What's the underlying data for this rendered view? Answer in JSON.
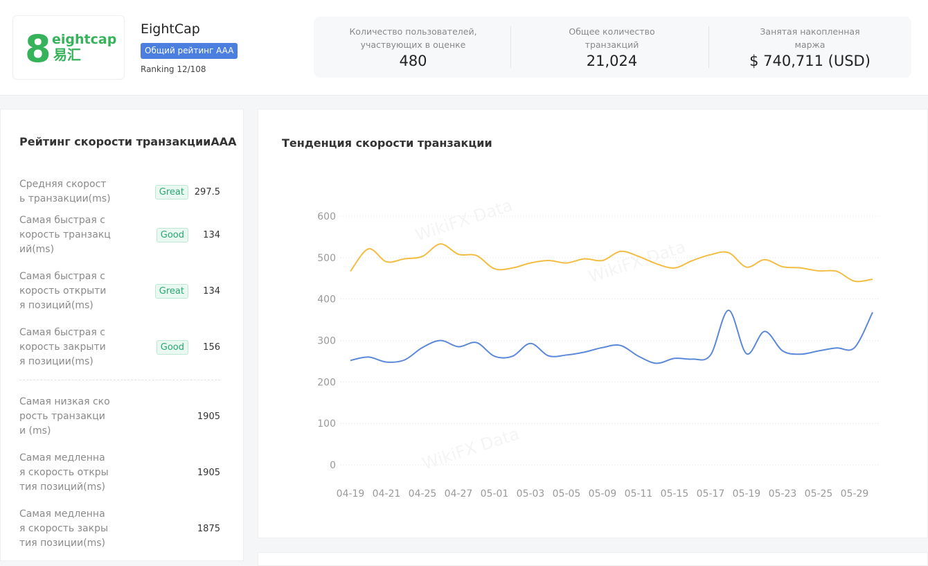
{
  "header": {
    "logo": {
      "mark": "8",
      "name": "eightcap",
      "cn": "易汇"
    },
    "name": "EightCap",
    "badge": "Общий рейтинг AAA",
    "ranking": "Ranking 12/108"
  },
  "stats": [
    {
      "label": "Количество пользователей, участвующих в оценке",
      "value": "480"
    },
    {
      "label": "Общее количество транзакций",
      "value": "21,024"
    },
    {
      "label": "Занятая накопленная маржа",
      "value": "$ 740,711",
      "unit": "(USD)"
    }
  ],
  "rating": {
    "title": "Рейтинг скорости транзакции",
    "grade": "AAA",
    "rows": [
      {
        "label": "Средняя скорость транзакции(ms)",
        "badge": "Great",
        "value": "297.5"
      },
      {
        "label": "Самая быстрая скорость транзакций(ms)",
        "badge": "Good",
        "value": "134"
      },
      {
        "label": "Самая быстрая скорость открытия позиций(ms)",
        "badge": "Great",
        "value": "134"
      },
      {
        "label": "Самая быстрая скорость закрытия позиции(ms)",
        "badge": "Good",
        "value": "156"
      },
      {
        "label": "Самая низкая скорость транзакции (ms)",
        "value": "1905"
      },
      {
        "label": "Самая медленная скорость открытия позиций(ms)",
        "value": "1905"
      },
      {
        "label": "Самая медленная скорость закрытия позиции(ms)",
        "value": "1875"
      }
    ]
  },
  "chart_data": {
    "type": "line",
    "title": "Тенденция скорости транзакции",
    "watermark": "WikiFX Data",
    "categories": [
      "04-19",
      null,
      "04-21",
      null,
      "04-25",
      null,
      "04-27",
      null,
      "05-01",
      null,
      "05-03",
      null,
      "05-05",
      null,
      "05-09",
      null,
      "05-11",
      null,
      "05-15",
      null,
      "05-17",
      null,
      "05-19",
      null,
      "05-23",
      null,
      "05-25",
      null,
      "05-29",
      null
    ],
    "series": [
      {
        "color": "#f2bd42",
        "values": [
          467,
          521,
          490,
          497,
          503,
          533,
          508,
          505,
          473,
          475,
          487,
          493,
          487,
          497,
          493,
          515,
          503,
          485,
          475,
          493,
          507,
          512,
          477,
          495,
          478,
          475,
          468,
          467,
          443,
          448
        ]
      },
      {
        "color": "#5b88d8",
        "values": [
          252,
          260,
          248,
          253,
          283,
          300,
          285,
          295,
          262,
          262,
          293,
          263,
          265,
          272,
          283,
          288,
          262,
          245,
          257,
          255,
          265,
          373,
          268,
          322,
          275,
          267,
          275,
          282,
          283,
          368
        ]
      }
    ],
    "ylim": [
      0,
      600
    ],
    "yticks": [
      0,
      100,
      200,
      300,
      400,
      500,
      600
    ],
    "grid": true
  }
}
